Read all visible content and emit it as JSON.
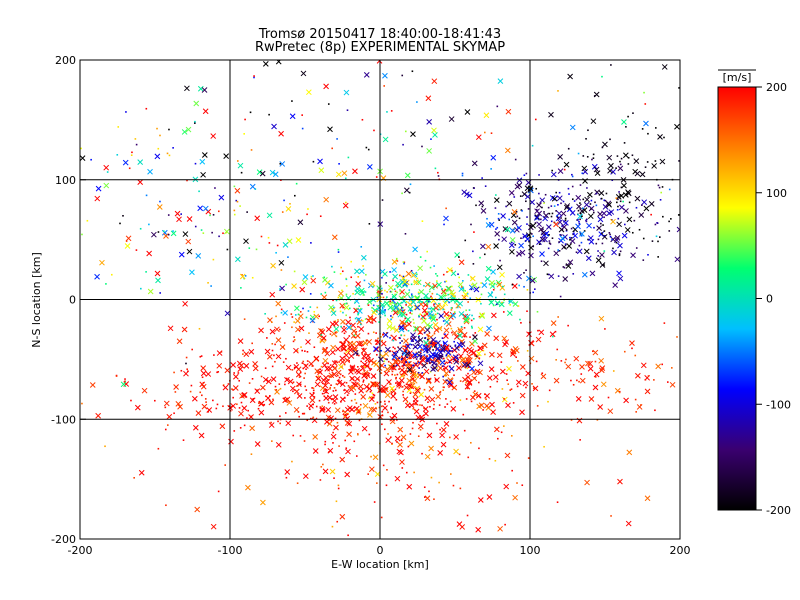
{
  "chart_data": {
    "type": "scatter",
    "title": "Tromsø 20150417 18:40:00-18:41:43",
    "subtitle": "RwPretec (8p) EXPERIMENTAL SKYMAP",
    "xlabel": "E-W location [km]",
    "ylabel": "N-S location [km]",
    "xlim": [
      -200,
      200
    ],
    "ylim": [
      -200,
      200
    ],
    "xticks": [
      "-200",
      "-100",
      "0",
      "100",
      "200"
    ],
    "yticks": [
      "-200",
      "-100",
      "0",
      "100",
      "200"
    ],
    "grid": true,
    "colorbar": {
      "label": "[m/s]",
      "range": [
        -200,
        200
      ],
      "ticks": [
        "200",
        "100",
        "0",
        "-100",
        "-200"
      ],
      "colormap": [
        "#000000",
        "#3a0070",
        "#0000ff",
        "#00c0ff",
        "#00ff70",
        "#ffff00",
        "#ff8000",
        "#ff0000"
      ]
    },
    "marker_types": [
      "x",
      "dot"
    ],
    "clusters": [
      {
        "center": [
          10,
          -55
        ],
        "spread": [
          45,
          30
        ],
        "count": 900,
        "value": 190,
        "value_spread": 40
      },
      {
        "center": [
          -70,
          -75
        ],
        "spread": [
          50,
          20
        ],
        "count": 260,
        "value": 195,
        "value_spread": 15
      },
      {
        "center": [
          25,
          0
        ],
        "spread": [
          35,
          14
        ],
        "count": 420,
        "value": 30,
        "value_spread": 55
      },
      {
        "center": [
          30,
          -45
        ],
        "spread": [
          16,
          9
        ],
        "count": 170,
        "value": -120,
        "value_spread": 30
      },
      {
        "center": [
          120,
          65
        ],
        "spread": [
          32,
          25
        ],
        "count": 380,
        "value": -140,
        "value_spread": 50
      },
      {
        "center": [
          160,
          110
        ],
        "spread": [
          25,
          30
        ],
        "count": 90,
        "value": -195,
        "value_spread": 10
      },
      {
        "center": [
          150,
          -65
        ],
        "spread": [
          40,
          20
        ],
        "count": 90,
        "value": 185,
        "value_spread": 25
      },
      {
        "center": [
          0,
          120
        ],
        "spread": [
          120,
          60
        ],
        "count": 230,
        "value": 0,
        "value_spread": 180
      },
      {
        "center": [
          -130,
          60
        ],
        "spread": [
          50,
          40
        ],
        "count": 140,
        "value": 20,
        "value_spread": 140
      },
      {
        "center": [
          0,
          -150
        ],
        "spread": [
          80,
          30
        ],
        "count": 110,
        "value": 180,
        "value_spread": 40
      }
    ]
  }
}
